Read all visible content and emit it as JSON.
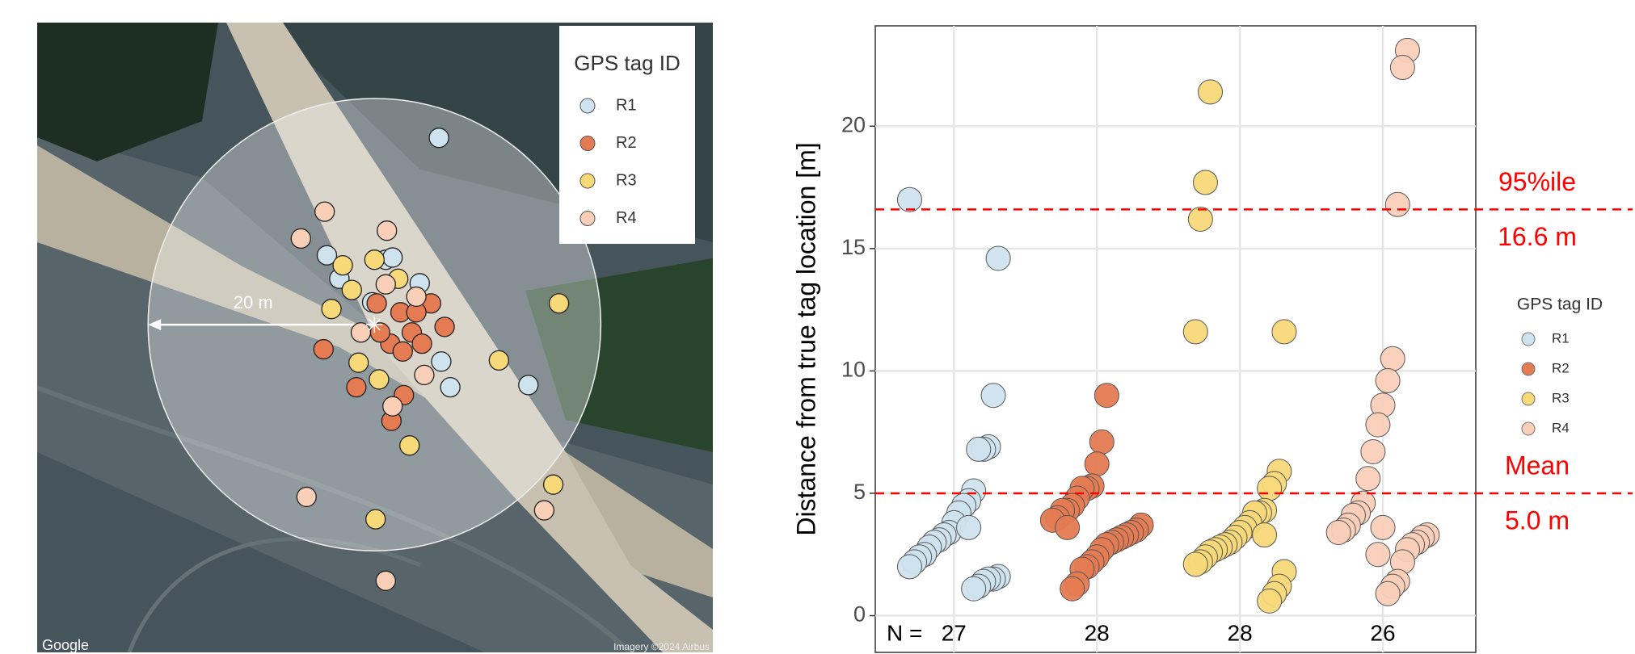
{
  "chart_data": [
    {
      "type": "map",
      "legend_title": "GPS tag ID",
      "xlim": [
        -29.8,
        29.9
      ],
      "ylim": [
        -29.3,
        27.0
      ],
      "circle_radius": 20,
      "radius_label": "20 m",
      "attribution": "Google",
      "imagery": "Imagery ©2024 Airbus",
      "series": [
        {
          "name": "R1",
          "color": "#cfe3ee",
          "x": [
            5.7,
            -4.2,
            4.0,
            5.9,
            6.7,
            13.6,
            1.0,
            1.6,
            -3.1,
            -0.2
          ],
          "y": [
            16.7,
            6.2,
            3.7,
            -3.3,
            -5.6,
            -5.4,
            5.8,
            6.0,
            4.1,
            2.0
          ]
        },
        {
          "name": "R2",
          "color": "#e57b52",
          "x": [
            -4.5,
            -1.6,
            2.6,
            1.5,
            5.0,
            6.2,
            0.2,
            2.3,
            3.3,
            1.4,
            4.2,
            2.5,
            0.5,
            3.7
          ],
          "y": [
            -2.2,
            -5.6,
            -6.3,
            -8.6,
            1.9,
            -0.2,
            1.9,
            1.1,
            -0.7,
            -1.7,
            -1.7,
            -2.4,
            -0.7,
            1.1
          ]
        },
        {
          "name": "R3",
          "color": "#f8d97a",
          "x": [
            16.3,
            11.0,
            15.8,
            0.1,
            3.1,
            -3.8,
            -2.0,
            0.0,
            -1.4,
            0.4,
            2.1,
            -2.8
          ],
          "y": [
            1.9,
            -3.2,
            -14.3,
            -17.4,
            -10.8,
            1.4,
            3.1,
            5.8,
            -3.4,
            -4.9,
            4.1,
            5.3
          ]
        },
        {
          "name": "R4",
          "color": "#f9cfb8",
          "x": [
            -4.4,
            -6.5,
            1.1,
            -6.0,
            1.0,
            15.0,
            4.4,
            1.6,
            1.0,
            -1.2,
            3.7
          ],
          "y": [
            10.1,
            7.7,
            8.4,
            -15.4,
            -22.9,
            -16.6,
            -4.5,
            -7.3,
            3.6,
            -0.7,
            2.5
          ]
        }
      ]
    },
    {
      "type": "strip",
      "y_label": "Distance from true tag location [m]",
      "legend_title": "GPS tag ID",
      "ylim": [
        -1.5,
        24.1
      ],
      "yticks": [
        0,
        5,
        10,
        15,
        20
      ],
      "grid": true,
      "n_prefix": "N =",
      "n": [
        27,
        28,
        28,
        26
      ],
      "hlines": [
        {
          "name": "95%ile",
          "value": 16.6,
          "label": "16.6 m",
          "color": "#ff0000"
        },
        {
          "name": "Mean",
          "value": 5.0,
          "label": "5.0 m",
          "color": "#ff0000"
        }
      ],
      "series": [
        {
          "name": "R1",
          "color": "#cfe3ee",
          "values": [
            17.0,
            14.6,
            9.0,
            6.9,
            6.8,
            6.8,
            5.1,
            4.7,
            4.5,
            4.2,
            3.8,
            3.4,
            3.3,
            3.1,
            3.0,
            2.8,
            2.5,
            2.4,
            2.2,
            2.0,
            1.6,
            1.5,
            1.5,
            1.4,
            1.2,
            1.1,
            3.6
          ]
        },
        {
          "name": "R2",
          "color": "#e57b52",
          "values": [
            9.0,
            7.1,
            6.2,
            5.3,
            5.2,
            5.2,
            4.8,
            4.5,
            4.3,
            4.3,
            4.0,
            3.9,
            3.7,
            3.5,
            3.4,
            3.3,
            3.2,
            3.1,
            3.0,
            2.9,
            2.7,
            2.4,
            2.2,
            2.0,
            1.9,
            1.3,
            1.1,
            3.6
          ]
        },
        {
          "name": "R3",
          "color": "#f8d97a",
          "values": [
            21.4,
            17.7,
            16.2,
            11.6,
            11.6,
            5.9,
            5.4,
            5.2,
            4.3,
            4.2,
            4.2,
            3.8,
            3.6,
            3.4,
            3.2,
            3.0,
            2.9,
            2.8,
            2.7,
            2.6,
            2.4,
            2.2,
            2.1,
            1.8,
            1.2,
            0.9,
            0.6,
            3.3
          ]
        },
        {
          "name": "R4",
          "color": "#f9cfb8",
          "values": [
            23.1,
            22.4,
            16.8,
            10.5,
            9.6,
            8.6,
            7.8,
            6.7,
            5.6,
            4.6,
            4.2,
            4.1,
            3.7,
            3.5,
            3.4,
            3.3,
            3.2,
            3.0,
            2.9,
            2.7,
            2.2,
            1.4,
            1.2,
            0.9,
            3.6,
            2.5
          ]
        }
      ]
    }
  ]
}
